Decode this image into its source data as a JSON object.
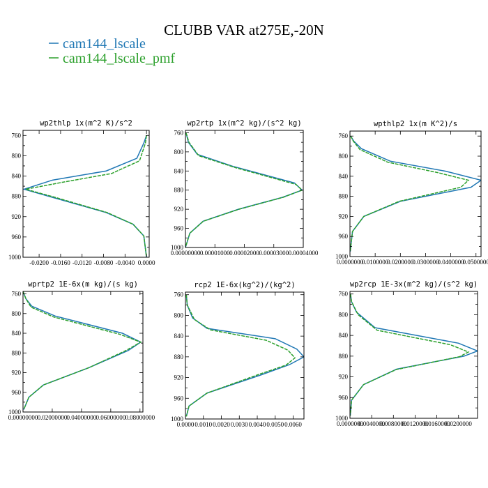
{
  "figure": {
    "title": "CLUBB VAR at275E,-20N"
  },
  "legend": [
    {
      "label": "cam144_lscale",
      "color": "#1f77b4"
    },
    {
      "label": "cam144_lscale_pmf",
      "color": "#2ca02c"
    }
  ],
  "chart_data": [
    {
      "type": "line",
      "title": "wp2thlp   1x(m^2 K)/s^2",
      "xlim": [
        -0.023,
        0.0005
      ],
      "ylim": [
        1000,
        750
      ],
      "x_ticks": [
        "-0.0200",
        "-0.0160",
        "-0.0120",
        "-0.0080",
        "-0.0040",
        "0.0000"
      ],
      "x_tick_values": [
        -0.02,
        -0.016,
        -0.012,
        -0.008,
        -0.004,
        0.0
      ],
      "y_ticks": [
        "760",
        "800",
        "840",
        "880",
        "920",
        "960",
        "1000"
      ],
      "y_tick_values": [
        760,
        800,
        840,
        880,
        920,
        960,
        1000
      ],
      "series": [
        {
          "name": "cam144_lscale",
          "color": "#1f77b4",
          "x": [
            0.0,
            -0.0005,
            -0.0018,
            -0.0075,
            -0.0175,
            -0.0228,
            -0.0175,
            -0.0075,
            -0.0025,
            -0.0005,
            0.0
          ],
          "y": [
            760,
            775,
            805,
            830,
            848,
            866,
            882,
            912,
            935,
            958,
            1000
          ]
        },
        {
          "name": "cam144_lscale_pmf",
          "color": "#2ca02c",
          "x": [
            0.0,
            -0.0002,
            -0.0013,
            -0.0065,
            -0.0155,
            -0.0225,
            -0.017,
            -0.0073,
            -0.0025,
            -0.0005,
            0.0
          ],
          "y": [
            760,
            775,
            810,
            835,
            852,
            866,
            882,
            912,
            935,
            958,
            1000
          ]
        }
      ]
    },
    {
      "type": "line",
      "title": "wp2rtp   1x(m^2 kg)/(s^2 kg)",
      "xlim": [
        0,
        4e-05
      ],
      "ylim": [
        1000,
        755
      ],
      "x_ticks": [
        "0.00000000",
        "0.00001000",
        "0.00002000",
        "0.00003000",
        "0.00004000"
      ],
      "x_tick_values": [
        0,
        1e-05,
        2e-05,
        3e-05,
        4e-05
      ],
      "y_ticks": [
        "760",
        "800",
        "840",
        "880",
        "920",
        "960",
        "1000"
      ],
      "y_tick_values": [
        760,
        800,
        840,
        880,
        920,
        960,
        1000
      ],
      "series": [
        {
          "name": "cam144_lscale",
          "color": "#1f77b4",
          "x": [
            2e-07,
            1e-06,
            4e-06,
            1.6e-05,
            3.7e-05,
            3.96e-05,
            3.3e-05,
            1.8e-05,
            6e-06,
            1.5e-06,
            0.0
          ],
          "y": [
            760,
            780,
            805,
            830,
            865,
            880,
            895,
            920,
            945,
            970,
            1000
          ]
        },
        {
          "name": "cam144_lscale_pmf",
          "color": "#2ca02c",
          "x": [
            2e-07,
            1.2e-06,
            4.5e-06,
            1.7e-05,
            3.75e-05,
            3.96e-05,
            3.32e-05,
            1.82e-05,
            6.1e-06,
            1.5e-06,
            0.0
          ],
          "y": [
            760,
            780,
            808,
            833,
            868,
            880,
            895,
            920,
            945,
            970,
            1000
          ]
        }
      ]
    },
    {
      "type": "line",
      "title": "wpthlp2   1x(m K^2)/s",
      "xlim": [
        0,
        0.052
      ],
      "ylim": [
        1000,
        750
      ],
      "x_ticks": [
        "0.0000000",
        "0.0100000",
        "0.0200000",
        "0.0300000",
        "0.0400000",
        "0.0500000"
      ],
      "x_tick_values": [
        0,
        0.01,
        0.02,
        0.03,
        0.04,
        0.05
      ],
      "y_ticks": [
        "760",
        "800",
        "840",
        "880",
        "920",
        "960",
        "1000"
      ],
      "y_tick_values": [
        760,
        800,
        840,
        880,
        920,
        960,
        1000
      ],
      "series": [
        {
          "name": "cam144_lscale",
          "color": "#1f77b4",
          "x": [
            0.0003,
            0.0015,
            0.0045,
            0.016,
            0.038,
            0.052,
            0.048,
            0.02,
            0.0055,
            0.001,
            0.0001
          ],
          "y": [
            760,
            770,
            785,
            810,
            830,
            848,
            862,
            890,
            920,
            950,
            990
          ]
        },
        {
          "name": "cam144_lscale_pmf",
          "color": "#2ca02c",
          "x": [
            0.0003,
            0.0013,
            0.004,
            0.015,
            0.035,
            0.047,
            0.044,
            0.0195,
            0.0055,
            0.001,
            0.0001
          ],
          "y": [
            760,
            770,
            787,
            812,
            833,
            848,
            862,
            890,
            920,
            950,
            990
          ]
        }
      ]
    },
    {
      "type": "line",
      "title": "wprtp2   1E-6x(m kg)/(s kg)",
      "xlim": [
        0,
        0.082
      ],
      "ylim": [
        1000,
        755
      ],
      "x_ticks": [
        "0.00000000",
        "0.02000000",
        "0.04000000",
        "0.06000000",
        "0.08000000"
      ],
      "x_tick_values": [
        0,
        0.02,
        0.04,
        0.06,
        0.08
      ],
      "y_ticks": [
        "760",
        "800",
        "840",
        "880",
        "920",
        "960",
        "1000"
      ],
      "y_tick_values": [
        760,
        800,
        840,
        880,
        920,
        960,
        1000
      ],
      "series": [
        {
          "name": "cam144_lscale",
          "color": "#1f77b4",
          "x": [
            0.0,
            0.002,
            0.006,
            0.022,
            0.068,
            0.0805,
            0.072,
            0.045,
            0.014,
            0.004,
            0.0005
          ],
          "y": [
            755,
            770,
            785,
            805,
            840,
            858,
            875,
            910,
            945,
            970,
            995
          ]
        },
        {
          "name": "cam144_lscale_pmf",
          "color": "#2ca02c",
          "x": [
            0.0,
            0.002,
            0.0055,
            0.021,
            0.066,
            0.0805,
            0.0705,
            0.045,
            0.014,
            0.004,
            0.0005
          ],
          "y": [
            755,
            770,
            787,
            807,
            842,
            858,
            875,
            910,
            945,
            970,
            995
          ]
        }
      ]
    },
    {
      "type": "line",
      "title": "rcp2   1E-6x(kg^2)/(kg^2)",
      "xlim": [
        0,
        0.0066
      ],
      "ylim": [
        1000,
        755
      ],
      "x_ticks": [
        "0.0000",
        "0.0010",
        "0.0020",
        "0.0030",
        "0.0040",
        "0.0050",
        "0.0060"
      ],
      "x_tick_values": [
        0,
        0.001,
        0.002,
        0.003,
        0.004,
        0.005,
        0.006
      ],
      "y_ticks": [
        "760",
        "800",
        "840",
        "880",
        "920",
        "960",
        "1000"
      ],
      "y_tick_values": [
        760,
        800,
        840,
        880,
        920,
        960,
        1000
      ],
      "series": [
        {
          "name": "cam144_lscale",
          "color": "#1f77b4",
          "x": [
            5e-05,
            0.0001,
            0.0004,
            0.0012,
            0.005,
            0.0062,
            0.0066,
            0.0058,
            0.0042,
            0.0012,
            0.0002,
            5e-05
          ],
          "y": [
            760,
            780,
            805,
            825,
            845,
            865,
            880,
            895,
            915,
            950,
            975,
            995
          ]
        },
        {
          "name": "cam144_lscale_pmf",
          "color": "#2ca02c",
          "x": [
            5e-05,
            0.0001,
            0.0005,
            0.0014,
            0.0045,
            0.0057,
            0.0061,
            0.0056,
            0.004,
            0.0012,
            0.0002,
            5e-05
          ],
          "y": [
            760,
            780,
            808,
            828,
            848,
            867,
            882,
            896,
            915,
            950,
            975,
            995
          ]
        }
      ]
    },
    {
      "type": "line",
      "title": "wp2rcp   1E-3x(m^2 kg)/(s^2 kg)",
      "xlim": [
        0,
        0.0235
      ],
      "ylim": [
        1000,
        755
      ],
      "x_ticks": [
        "0.0000000",
        "0.0040000",
        "0.0080000",
        "0.0120000",
        "0.0160000",
        "0.0200000"
      ],
      "x_tick_values": [
        0,
        0.004,
        0.008,
        0.012,
        0.016,
        0.02
      ],
      "y_ticks": [
        "760",
        "800",
        "840",
        "880",
        "920",
        "960",
        "1000"
      ],
      "y_tick_values": [
        760,
        800,
        840,
        880,
        920,
        960,
        1000
      ],
      "series": [
        {
          "name": "cam144_lscale",
          "color": "#1f77b4",
          "x": [
            0.0001,
            0.0003,
            0.0012,
            0.0046,
            0.02,
            0.0235,
            0.021,
            0.0086,
            0.0025,
            0.0003,
            5e-05
          ],
          "y": [
            760,
            775,
            795,
            825,
            855,
            870,
            880,
            905,
            935,
            965,
            995
          ]
        },
        {
          "name": "cam144_lscale_pmf",
          "color": "#2ca02c",
          "x": [
            0.0001,
            0.0003,
            0.0015,
            0.005,
            0.0185,
            0.0218,
            0.0202,
            0.0085,
            0.0025,
            0.0003,
            5e-05
          ],
          "y": [
            760,
            775,
            800,
            830,
            858,
            872,
            881,
            906,
            935,
            965,
            995
          ]
        }
      ]
    }
  ]
}
